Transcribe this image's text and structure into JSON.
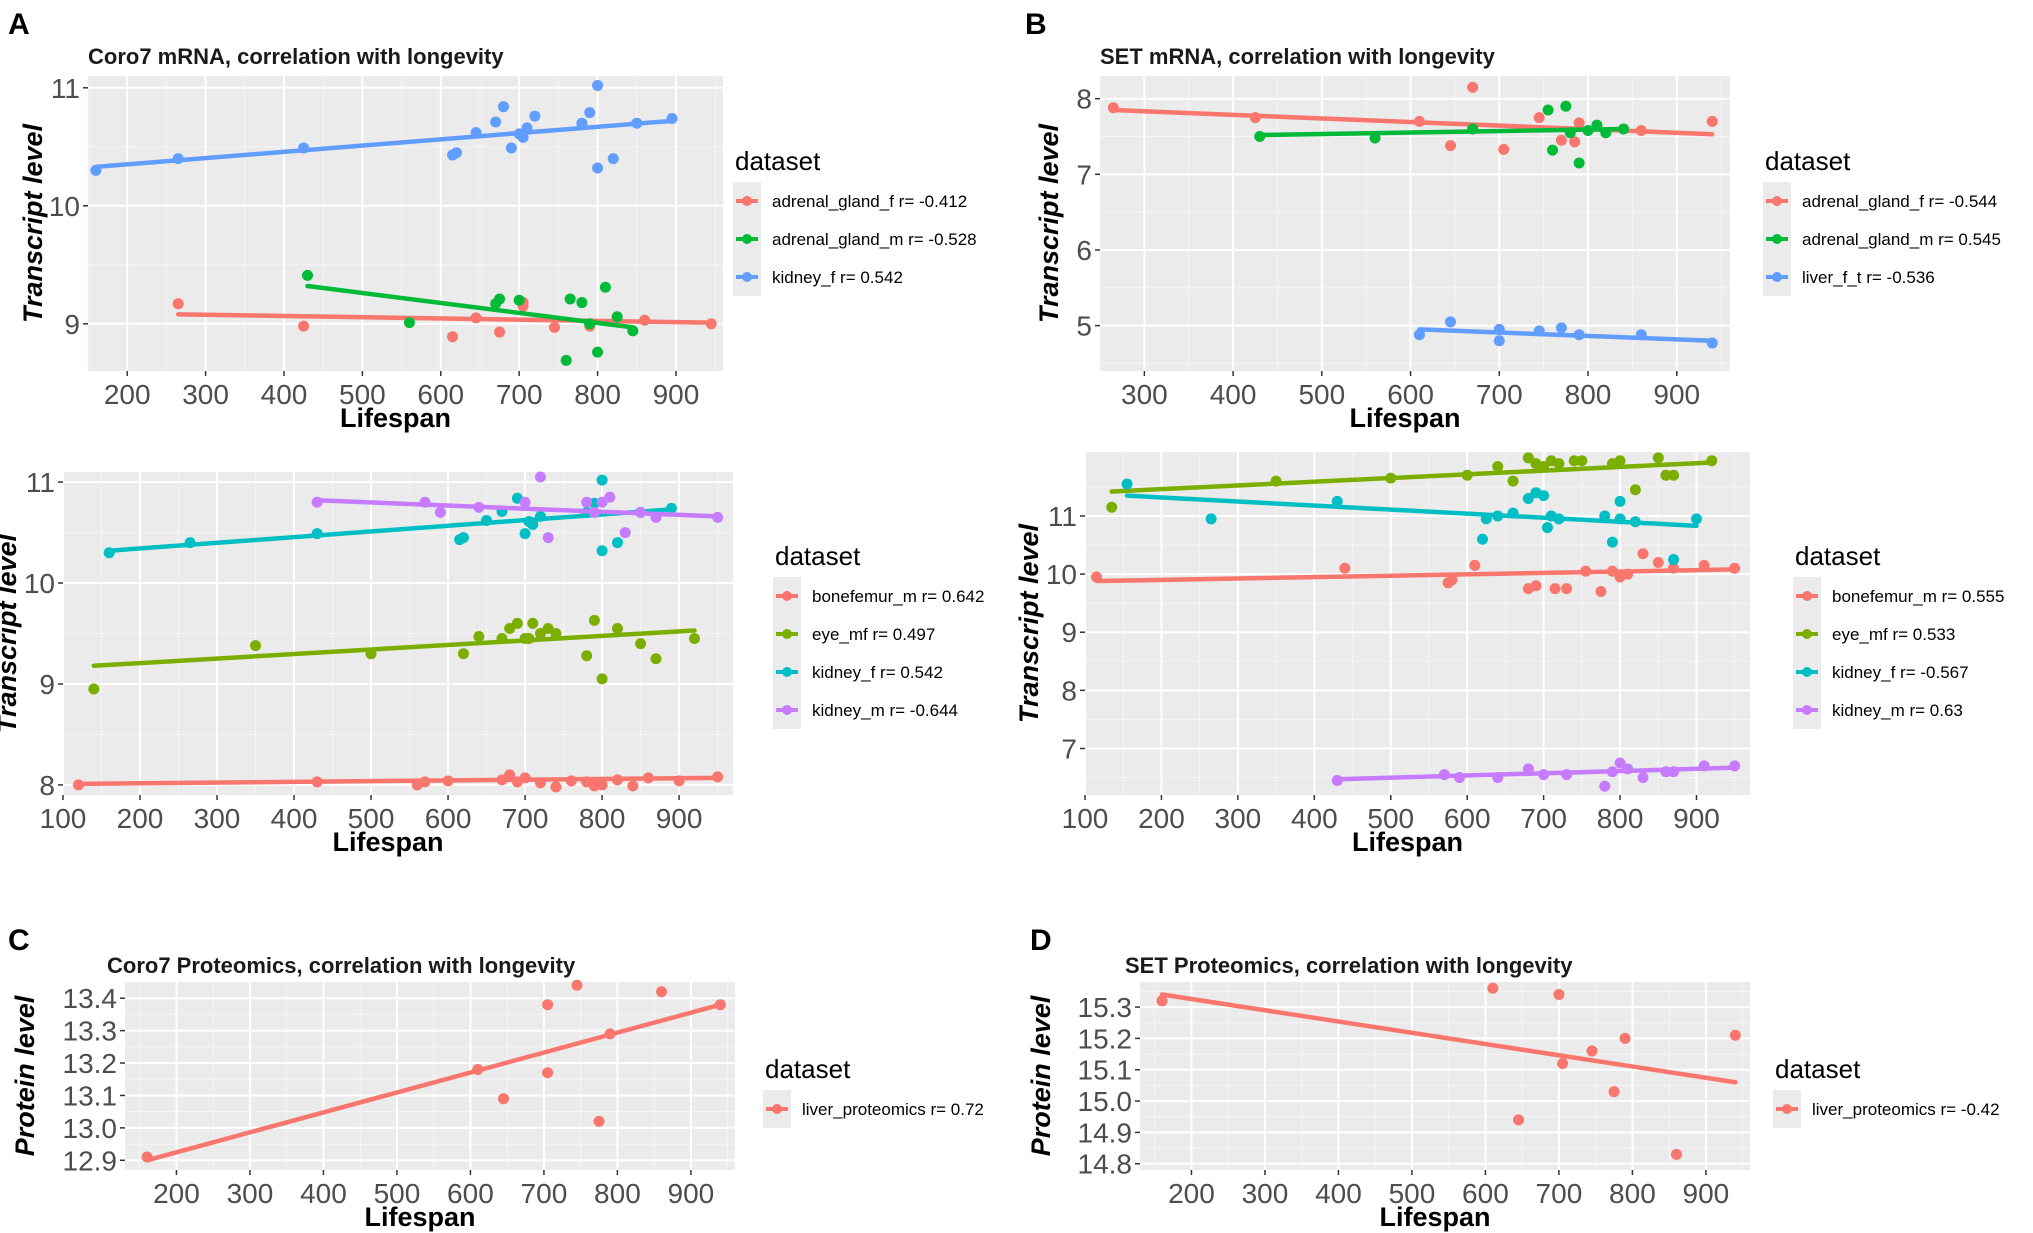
{
  "chart_data": [
    {
      "type": "scatter",
      "panel_letter": "A",
      "title": "Coro7 mRNA, correlation with longevity",
      "xlabel": "Lifespan",
      "ylabel": "Transcript level",
      "xlim": [
        150,
        960
      ],
      "ylim": [
        8.6,
        11.1
      ],
      "xticks": [
        200,
        300,
        400,
        500,
        600,
        700,
        800,
        900
      ],
      "yticks": [
        9,
        10,
        11
      ],
      "legend_title": "dataset",
      "series": [
        {
          "name": "adrenal_gland_f",
          "label": "adrenal_gland_f r= -0.412",
          "color": "#f8766d",
          "x": [
            265,
            425,
            615,
            645,
            675,
            705,
            705,
            745,
            790,
            860,
            945
          ],
          "y": [
            9.17,
            8.98,
            8.89,
            9.05,
            8.93,
            9.18,
            9.15,
            8.97,
            8.98,
            9.03,
            9.0
          ],
          "fit": [
            [
              265,
              9.08
            ],
            [
              945,
              9.01
            ]
          ]
        },
        {
          "name": "adrenal_gland_m",
          "label": "adrenal_gland_m r= -0.528",
          "color": "#00ba38",
          "x": [
            430,
            560,
            670,
            675,
            700,
            760,
            765,
            780,
            790,
            800,
            810,
            825,
            845
          ],
          "y": [
            9.41,
            9.01,
            9.17,
            9.21,
            9.2,
            8.69,
            9.21,
            9.18,
            9.0,
            8.76,
            9.31,
            9.06,
            8.94
          ],
          "fit": [
            [
              430,
              9.32
            ],
            [
              845,
              8.97
            ]
          ]
        },
        {
          "name": "kidney_f",
          "label": "kidney_f r= 0.542",
          "color": "#619cff",
          "x": [
            160,
            265,
            425,
            615,
            620,
            645,
            670,
            680,
            690,
            700,
            705,
            710,
            720,
            780,
            790,
            800,
            800,
            820,
            850,
            895
          ],
          "y": [
            10.3,
            10.4,
            10.49,
            10.43,
            10.45,
            10.62,
            10.71,
            10.84,
            10.49,
            10.61,
            10.58,
            10.66,
            10.76,
            10.7,
            10.79,
            11.02,
            10.32,
            10.4,
            10.7,
            10.74
          ],
          "fit": [
            [
              160,
              10.33
            ],
            [
              895,
              10.72
            ]
          ]
        }
      ]
    },
    {
      "type": "scatter",
      "panel_letter": "B",
      "title": "SET mRNA, correlation with longevity",
      "xlabel": "Lifespan",
      "ylabel": "Transcript level",
      "xlim": [
        250,
        960
      ],
      "ylim": [
        4.4,
        8.3
      ],
      "xticks": [
        300,
        400,
        500,
        600,
        700,
        800,
        900
      ],
      "yticks": [
        5,
        6,
        7,
        8
      ],
      "legend_title": "dataset",
      "series": [
        {
          "name": "adrenal_gland_f",
          "label": "adrenal_gland_f r= -0.544",
          "color": "#f8766d",
          "x": [
            265,
            425,
            610,
            645,
            670,
            705,
            745,
            770,
            785,
            790,
            860,
            940
          ],
          "y": [
            7.88,
            7.75,
            7.7,
            7.38,
            8.15,
            7.33,
            7.75,
            7.45,
            7.43,
            7.68,
            7.58,
            7.7
          ],
          "fit": [
            [
              265,
              7.85
            ],
            [
              940,
              7.53
            ]
          ]
        },
        {
          "name": "adrenal_gland_m",
          "label": "adrenal_gland_m r= 0.545",
          "color": "#00ba38",
          "x": [
            430,
            560,
            670,
            755,
            760,
            775,
            780,
            790,
            800,
            810,
            820,
            840
          ],
          "y": [
            7.5,
            7.48,
            7.6,
            7.85,
            7.32,
            7.9,
            7.55,
            7.15,
            7.58,
            7.65,
            7.55,
            7.6
          ],
          "fit": [
            [
              430,
              7.52
            ],
            [
              840,
              7.6
            ]
          ]
        },
        {
          "name": "liver_f_t",
          "label": "liver_f_t r= -0.536",
          "color": "#619cff",
          "x": [
            610,
            645,
            700,
            700,
            745,
            770,
            790,
            860,
            940
          ],
          "y": [
            4.88,
            5.05,
            4.95,
            4.8,
            4.93,
            4.97,
            4.88,
            4.88,
            4.77
          ],
          "fit": [
            [
              610,
              4.95
            ],
            [
              940,
              4.8
            ]
          ]
        }
      ]
    },
    {
      "type": "scatter",
      "panel_letter": "",
      "title": "",
      "xlabel": "Lifespan",
      "ylabel": "Transcript level",
      "xlim": [
        100,
        970
      ],
      "ylim": [
        7.9,
        11.1
      ],
      "xticks": [
        100,
        200,
        300,
        400,
        500,
        600,
        700,
        800,
        900
      ],
      "yticks": [
        8,
        9,
        10,
        11
      ],
      "legend_title": "dataset",
      "series": [
        {
          "name": "bonefemur_m",
          "label": "bonefemur_m r= 0.642",
          "color": "#f8766d",
          "x": [
            120,
            430,
            560,
            570,
            600,
            670,
            680,
            690,
            700,
            720,
            740,
            760,
            780,
            790,
            800,
            820,
            840,
            860,
            900,
            950
          ],
          "y": [
            8.0,
            8.03,
            8.0,
            8.03,
            8.04,
            8.05,
            8.1,
            8.03,
            8.07,
            8.02,
            7.98,
            8.04,
            8.03,
            7.99,
            8.0,
            8.05,
            7.99,
            8.07,
            8.04,
            8.08
          ],
          "fit": [
            [
              120,
              8.01
            ],
            [
              950,
              8.07
            ]
          ]
        },
        {
          "name": "eye_mf",
          "label": "eye_mf r= 0.497",
          "color": "#7cae00",
          "x": [
            140,
            350,
            500,
            620,
            640,
            670,
            680,
            690,
            700,
            705,
            710,
            720,
            730,
            740,
            780,
            790,
            800,
            820,
            850,
            870,
            920
          ],
          "y": [
            8.95,
            9.38,
            9.3,
            9.3,
            9.47,
            9.45,
            9.55,
            9.6,
            9.45,
            9.45,
            9.6,
            9.5,
            9.55,
            9.5,
            9.28,
            9.63,
            9.05,
            9.55,
            9.4,
            9.25,
            9.45
          ],
          "fit": [
            [
              140,
              9.18
            ],
            [
              920,
              9.53
            ]
          ]
        },
        {
          "name": "kidney_f",
          "label": "kidney_f r= 0.542",
          "color": "#00bfc4",
          "x": [
            160,
            265,
            430,
            615,
            620,
            650,
            670,
            690,
            700,
            705,
            710,
            720,
            780,
            790,
            800,
            800,
            820,
            850,
            890
          ],
          "y": [
            10.3,
            10.4,
            10.49,
            10.43,
            10.45,
            10.62,
            10.71,
            10.84,
            10.49,
            10.61,
            10.58,
            10.66,
            10.7,
            10.79,
            11.02,
            10.32,
            10.4,
            10.7,
            10.74
          ],
          "fit": [
            [
              160,
              10.32
            ],
            [
              890,
              10.73
            ]
          ]
        },
        {
          "name": "kidney_m",
          "label": "kidney_m r= -0.644",
          "color": "#c77cff",
          "x": [
            430,
            570,
            590,
            640,
            700,
            720,
            730,
            780,
            790,
            800,
            810,
            830,
            850,
            870,
            950
          ],
          "y": [
            10.8,
            10.8,
            10.7,
            10.75,
            10.8,
            11.05,
            10.45,
            10.8,
            10.7,
            10.8,
            10.85,
            10.5,
            10.7,
            10.65,
            10.65
          ],
          "fit": [
            [
              430,
              10.82
            ],
            [
              950,
              10.66
            ]
          ]
        }
      ]
    },
    {
      "type": "scatter",
      "panel_letter": "",
      "title": "",
      "xlabel": "Lifespan",
      "ylabel": "Transcript level",
      "xlim": [
        100,
        970
      ],
      "ylim": [
        6.2,
        12.1
      ],
      "xticks": [
        100,
        200,
        300,
        400,
        500,
        600,
        700,
        800,
        900
      ],
      "yticks": [
        7,
        8,
        9,
        10,
        11
      ],
      "legend_title": "dataset",
      "series": [
        {
          "name": "bonefemur_m",
          "label": "bonefemur_m r= 0.555",
          "color": "#f8766d",
          "x": [
            115,
            440,
            575,
            580,
            610,
            680,
            690,
            715,
            730,
            755,
            775,
            790,
            800,
            810,
            830,
            850,
            870,
            910,
            950
          ],
          "y": [
            9.95,
            10.1,
            9.85,
            9.9,
            10.15,
            9.75,
            9.8,
            9.75,
            9.75,
            10.05,
            9.7,
            10.05,
            9.95,
            10.0,
            10.35,
            10.2,
            10.1,
            10.15,
            10.1
          ],
          "fit": [
            [
              115,
              9.88
            ],
            [
              950,
              10.08
            ]
          ]
        },
        {
          "name": "eye_mf",
          "label": "eye_mf r= 0.533",
          "color": "#7cae00",
          "x": [
            135,
            350,
            500,
            600,
            640,
            660,
            680,
            690,
            700,
            710,
            720,
            740,
            750,
            790,
            800,
            820,
            850,
            860,
            870,
            920
          ],
          "y": [
            11.15,
            11.6,
            11.65,
            11.7,
            11.85,
            11.6,
            12.0,
            11.9,
            11.85,
            11.95,
            11.9,
            11.95,
            11.95,
            11.9,
            11.95,
            11.45,
            12.0,
            11.7,
            11.7,
            11.95
          ],
          "fit": [
            [
              135,
              11.42
            ],
            [
              920,
              11.92
            ]
          ]
        },
        {
          "name": "kidney_f",
          "label": "kidney_f r= -0.567",
          "color": "#00bfc4",
          "x": [
            155,
            265,
            430,
            620,
            625,
            640,
            660,
            680,
            690,
            700,
            705,
            710,
            720,
            780,
            790,
            800,
            800,
            820,
            870,
            900
          ],
          "y": [
            11.55,
            10.95,
            11.25,
            10.6,
            10.95,
            11.0,
            11.05,
            11.3,
            11.4,
            11.35,
            10.8,
            11.0,
            10.95,
            11.0,
            10.55,
            11.25,
            10.95,
            10.9,
            10.25,
            10.95
          ],
          "fit": [
            [
              155,
              11.35
            ],
            [
              900,
              10.83
            ]
          ]
        },
        {
          "name": "kidney_m",
          "label": "kidney_m r= 0.63",
          "color": "#c77cff",
          "x": [
            430,
            570,
            590,
            640,
            680,
            700,
            730,
            780,
            790,
            800,
            810,
            830,
            860,
            870,
            910,
            950
          ],
          "y": [
            6.45,
            6.55,
            6.5,
            6.5,
            6.65,
            6.55,
            6.55,
            6.35,
            6.6,
            6.75,
            6.65,
            6.5,
            6.6,
            6.6,
            6.7,
            6.7
          ],
          "fit": [
            [
              430,
              6.47
            ],
            [
              950,
              6.67
            ]
          ]
        }
      ]
    },
    {
      "type": "scatter",
      "panel_letter": "C",
      "title": "Coro7 Proteomics, correlation with longevity",
      "xlabel": "Lifespan",
      "ylabel": "Protein level",
      "xlim": [
        130,
        960
      ],
      "ylim": [
        12.87,
        13.45
      ],
      "xticks": [
        200,
        300,
        400,
        500,
        600,
        700,
        800,
        900
      ],
      "yticks": [
        12.9,
        13.0,
        13.1,
        13.2,
        13.3,
        13.4
      ],
      "legend_title": "dataset",
      "series": [
        {
          "name": "liver_proteomics",
          "label": "liver_proteomics r= 0.72",
          "color": "#f8766d",
          "x": [
            160,
            610,
            645,
            705,
            705,
            745,
            775,
            790,
            860,
            940
          ],
          "y": [
            12.91,
            13.18,
            13.09,
            13.17,
            13.38,
            13.44,
            13.02,
            13.29,
            13.42,
            13.38
          ],
          "fit": [
            [
              160,
              12.9
            ],
            [
              940,
              13.38
            ]
          ]
        }
      ]
    },
    {
      "type": "scatter",
      "panel_letter": "D",
      "title": "SET Proteomics, correlation with longevity",
      "xlabel": "Lifespan",
      "ylabel": "Protein level",
      "xlim": [
        130,
        960
      ],
      "ylim": [
        14.78,
        15.38
      ],
      "xticks": [
        200,
        300,
        400,
        500,
        600,
        700,
        800,
        900
      ],
      "yticks": [
        14.8,
        14.9,
        15.0,
        15.1,
        15.2,
        15.3
      ],
      "legend_title": "dataset",
      "series": [
        {
          "name": "liver_proteomics",
          "label": "liver_proteomics r= -0.42",
          "color": "#f8766d",
          "x": [
            160,
            610,
            645,
            700,
            705,
            745,
            775,
            790,
            860,
            940
          ],
          "y": [
            15.32,
            15.36,
            14.94,
            15.34,
            15.12,
            15.16,
            15.03,
            15.2,
            14.83,
            15.21
          ],
          "fit": [
            [
              160,
              15.34
            ],
            [
              940,
              15.06
            ]
          ]
        }
      ]
    }
  ]
}
